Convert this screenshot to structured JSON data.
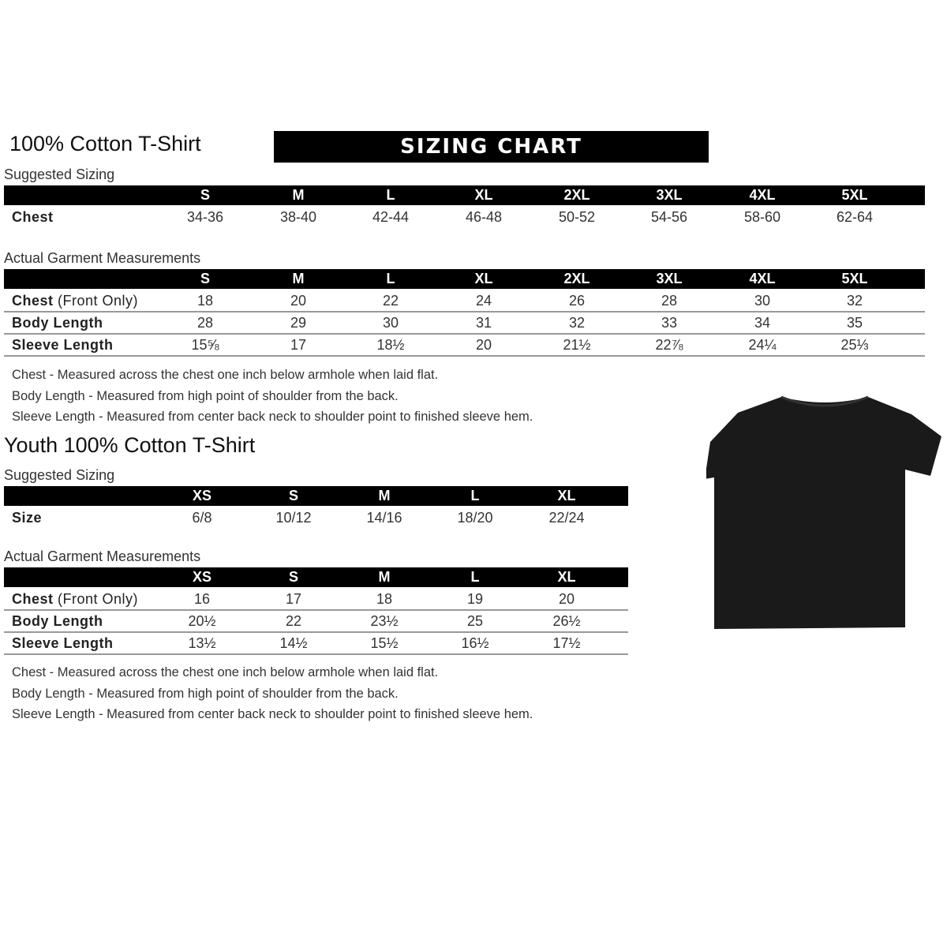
{
  "adult": {
    "title": "100% Cotton T-Shirt",
    "banner": "SIZING CHART",
    "suggested_label": "Suggested Sizing",
    "sizes": [
      "S",
      "M",
      "L",
      "XL",
      "2XL",
      "3XL",
      "4XL",
      "5XL"
    ],
    "chest_label": "Chest",
    "chest": [
      "34-36",
      "38-40",
      "42-44",
      "46-48",
      "50-52",
      "54-56",
      "58-60",
      "62-64"
    ],
    "actual_label": "Actual Garment Measurements",
    "rows": [
      {
        "label": "Chest",
        "note": "(Front Only)",
        "values": [
          "18",
          "20",
          "22",
          "24",
          "26",
          "28",
          "30",
          "32"
        ]
      },
      {
        "label": "Body Length",
        "note": "",
        "values": [
          "28",
          "29",
          "30",
          "31",
          "32",
          "33",
          "34",
          "35"
        ]
      },
      {
        "label": "Sleeve Length",
        "note": "",
        "values": [
          "15⅝",
          "17",
          "18½",
          "20",
          "21½",
          "22⅞",
          "24¼",
          "25⅓"
        ]
      }
    ],
    "notes": [
      "Chest - Measured across the chest one inch below armhole when laid flat.",
      "Body Length - Measured from high point of shoulder from the back.",
      "Sleeve Length - Measured from center back neck to shoulder point to finished sleeve hem."
    ]
  },
  "youth": {
    "title": "Youth 100% Cotton T-Shirt",
    "suggested_label": "Suggested Sizing",
    "sizes": [
      "XS",
      "S",
      "M",
      "L",
      "XL"
    ],
    "size_label": "Size",
    "size_values": [
      "6/8",
      "10/12",
      "14/16",
      "18/20",
      "22/24"
    ],
    "actual_label": "Actual Garment Measurements",
    "rows": [
      {
        "label": "Chest",
        "note": "(Front Only)",
        "values": [
          "16",
          "17",
          "18",
          "19",
          "20"
        ]
      },
      {
        "label": "Body Length",
        "note": "",
        "values": [
          "20½",
          "22",
          "23½",
          "25",
          "26½"
        ]
      },
      {
        "label": "Sleeve Length",
        "note": "",
        "values": [
          "13½",
          "14½",
          "15½",
          "16½",
          "17½"
        ]
      }
    ],
    "notes": [
      "Chest - Measured across the chest one inch below armhole when laid flat.",
      "Body Length - Measured from high point of shoulder from the back.",
      "Sleeve Length - Measured from center back neck to shoulder point to finished sleeve hem."
    ]
  },
  "tshirt_color": "#1a1a1a"
}
